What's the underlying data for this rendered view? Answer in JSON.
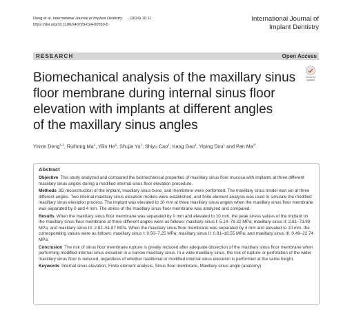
{
  "header": {
    "citation_authors": "Deng et al.",
    "citation_journal": "International Journal of Implant Dentistry",
    "citation_year": "(2024) 10:11",
    "doi": "https://doi.org/10.1186/s40729-024-00530-5",
    "journal_lines": [
      "International Journal of",
      "Implant Dentistry"
    ]
  },
  "bar": {
    "label": "RESEARCH",
    "access": "Open Access"
  },
  "badge": {
    "lines": [
      "Check for",
      "updates"
    ]
  },
  "title_lines": [
    "Biomechanical analysis of the maxillary sinus",
    "floor membrane during internal sinus floor",
    "elevation with implants at different angles",
    "of the maxillary sinus angles"
  ],
  "authors": [
    {
      "name": "Yinxin Deng",
      "sup": "1,2",
      "sep": ", "
    },
    {
      "name": "Ruihong Ma",
      "sup": "1",
      "sep": ", "
    },
    {
      "name": "Yilin He",
      "sup": "1",
      "sep": ", "
    },
    {
      "name": "Shujia Yu",
      "sup": "1",
      "sep": ", "
    },
    {
      "name": "Shiyu Cao",
      "sup": "1",
      "sep": ", "
    },
    {
      "name": "Kang Gao",
      "sup": "1",
      "sep": ", "
    },
    {
      "name": "Yiping Dou",
      "sup": "1",
      "sep": " and "
    },
    {
      "name": "Pan Ma",
      "sup": "1*"
    }
  ],
  "abstract": {
    "heading": "Abstract",
    "sections": [
      {
        "label": "Objective",
        "text": "This study analyzed and compared the biomechanical properties of maxillary sinus floor mucosa with implants at three different maxillary sinus angles during a modified internal sinus floor elevation procedure."
      },
      {
        "label": "Methods",
        "text": "3D reconstruction of the implant, maxillary sinus bone, and membrane were performed. The maxillary sinus model was set at three different angles. Two internal maxillary sinus elevation models were established, and finite element analysis was used to simulate the modified maxillary sinus elevation process. The implant was elevated to 10 mm at three maxillary sinus angles when the maxillary sinus floor membrane was separated by 0 and 4 mm. The stress of the maxillary sinus floor membrane was analyzed and compared."
      },
      {
        "label": "Results",
        "text": "When the maxillary sinus floor membrane was separated by 0 mm and elevated to 10 mm, the peak stress values of the implant on the maxillary sinus floor membrane at three different angles were as follows: maxillary sinus I: 5.14–78.32 MPa; maxillary sinus II: 2.81–73.89 MPa; and maxillary sinus III: 2.82–51.87 MPa. When the maxillary sinus floor membrane was separated by 4 mm and elevated to 10 mm, the corresponding values were as follows: maxillary sinus I: 0.50–7.25 MPa; maxillary sinus II: 0.81–16.55 MPa; and maxillary sinus III: 0.49–22.74 MPa."
      },
      {
        "label": "Conclusion",
        "text": "The risk of sinus floor membrane rupture is greatly reduced after adequate dissection of the maxillary sinus floor membrane when performing modified internal sinus elevation in a narrow maxillary sinus. In a wide maxillary sinus, the risk of rupture or perforation of the wider maxillary sinus floor is reduced, regardless of whether traditional or modified internal sinus elevation is performed at the same height."
      },
      {
        "label": "Keywords",
        "text": "Internal sinus elevation, Finite element analysis, Sinus floor membrane, Maxillary sinus angle (anatomy)"
      }
    ]
  }
}
